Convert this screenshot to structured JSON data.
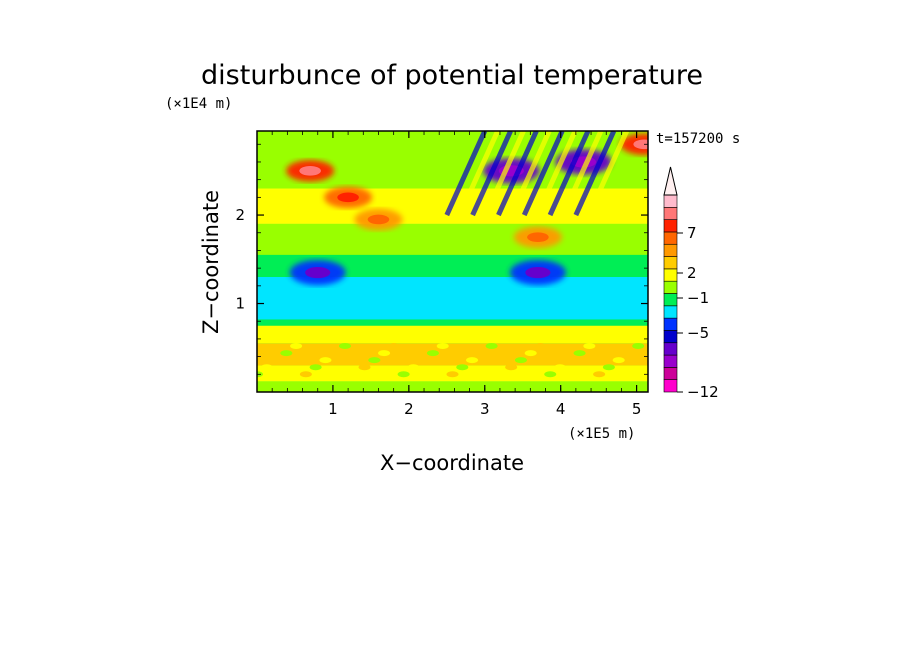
{
  "chart_data": {
    "type": "heatmap",
    "title": "disturbunce of potential temperature",
    "xlabel": "X−coordinate",
    "ylabel": "Z−coordinate",
    "x_scale_label": "(×1E5 m)",
    "y_scale_label": "(×1E4 m)",
    "time_label": "t=157200 s",
    "xlim": [
      0,
      5.15
    ],
    "ylim": [
      0,
      2.95
    ],
    "x_ticks": [
      1,
      2,
      3,
      4,
      5
    ],
    "x_tick_labels": [
      "1",
      "2",
      "3",
      "4",
      "5"
    ],
    "y_ticks": [
      1,
      2
    ],
    "y_tick_labels": [
      "1",
      "2"
    ],
    "colorbar": {
      "labels": [
        {
          "value": 7,
          "text": "7"
        },
        {
          "value": 2,
          "text": "2"
        },
        {
          "value": -1,
          "text": "−1"
        },
        {
          "value": -5,
          "text": "−5"
        },
        {
          "value": -12,
          "text": "−12"
        }
      ],
      "colors": [
        "#ff00cc",
        "#cc0099",
        "#9900cc",
        "#6600cc",
        "#0000cc",
        "#0033ff",
        "#00e5ff",
        "#00ee55",
        "#99ff00",
        "#ffff00",
        "#ffcc00",
        "#ff9900",
        "#ff6600",
        "#ff2200",
        "#ff7777",
        "#ffbbcc"
      ],
      "extend_top": true
    },
    "bands": [
      {
        "z": [
          0.0,
          0.12
        ],
        "value": 1
      },
      {
        "z": [
          0.12,
          0.3
        ],
        "value": 2
      },
      {
        "z": [
          0.3,
          0.55
        ],
        "value": 3
      },
      {
        "z": [
          0.55,
          0.75
        ],
        "value": 2
      },
      {
        "z": [
          0.75,
          0.82
        ],
        "value": 0
      },
      {
        "z": [
          0.82,
          1.3
        ],
        "value": -1
      },
      {
        "z": [
          1.3,
          1.55
        ],
        "value": 0
      },
      {
        "z": [
          1.55,
          1.9
        ],
        "value": 1
      },
      {
        "z": [
          1.9,
          2.3
        ],
        "value": 2
      },
      {
        "z": [
          2.3,
          2.95
        ],
        "value": 1
      }
    ],
    "features": [
      {
        "x": 0.7,
        "z": 2.5,
        "value": 7
      },
      {
        "x": 1.2,
        "z": 2.2,
        "value": 5
      },
      {
        "x": 1.6,
        "z": 1.95,
        "value": 4
      },
      {
        "x": 3.35,
        "z": 2.5,
        "value": -6
      },
      {
        "x": 4.3,
        "z": 2.6,
        "value": -6
      },
      {
        "x": 0.8,
        "z": 1.35,
        "value": -4
      },
      {
        "x": 3.7,
        "z": 1.35,
        "value": -4
      },
      {
        "x": 3.7,
        "z": 1.75,
        "value": 4
      },
      {
        "x": 5.1,
        "z": 2.8,
        "value": 7
      }
    ]
  }
}
